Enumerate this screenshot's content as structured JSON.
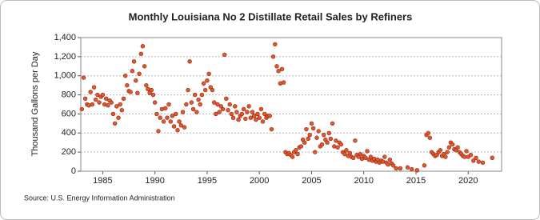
{
  "chart_data": {
    "type": "scatter",
    "title": "Monthly Louisiana No 2 Distillate Retail Sales by Refiners",
    "y_label": "Thousand Gallons per Day",
    "source": "Source: U.S. Energy Information Administration",
    "color": "#e4572e",
    "grid": true,
    "xlim": [
      1982.9,
      2023.2
    ],
    "ylim": [
      0,
      1400
    ],
    "xticks": [
      1985,
      1990,
      1995,
      2000,
      2005,
      2010,
      2015,
      2020
    ],
    "yticks": [
      0,
      200,
      400,
      600,
      800,
      {
        "value": 1000,
        "label": "1,000"
      },
      {
        "value": 1200,
        "label": "1,200"
      },
      {
        "value": 1400,
        "label": "1,400"
      }
    ],
    "x": [
      1983.0,
      1983.17,
      1983.33,
      1983.5,
      1983.67,
      1983.83,
      1984.0,
      1984.17,
      1984.33,
      1984.5,
      1984.67,
      1984.83,
      1985.0,
      1985.17,
      1985.33,
      1985.5,
      1985.67,
      1985.83,
      1986.0,
      1986.17,
      1986.33,
      1986.5,
      1986.67,
      1986.83,
      1987.0,
      1987.17,
      1987.33,
      1987.5,
      1987.67,
      1987.83,
      1988.0,
      1988.17,
      1988.33,
      1988.5,
      1988.67,
      1988.83,
      1989.0,
      1989.17,
      1989.33,
      1989.5,
      1989.67,
      1989.83,
      1990.0,
      1990.17,
      1990.33,
      1990.5,
      1990.67,
      1990.83,
      1991.0,
      1991.17,
      1991.33,
      1991.5,
      1991.67,
      1991.83,
      1992.0,
      1992.17,
      1992.33,
      1992.5,
      1992.67,
      1992.83,
      1993.0,
      1993.17,
      1993.33,
      1993.5,
      1993.67,
      1993.83,
      1994.0,
      1994.17,
      1994.33,
      1994.5,
      1994.67,
      1994.83,
      1995.0,
      1995.17,
      1995.33,
      1995.5,
      1995.67,
      1995.83,
      1996.0,
      1996.17,
      1996.33,
      1996.5,
      1996.67,
      1996.83,
      1997.0,
      1997.17,
      1997.33,
      1997.5,
      1997.67,
      1997.83,
      1998.0,
      1998.17,
      1998.33,
      1998.5,
      1998.67,
      1998.83,
      1999.0,
      1999.17,
      1999.33,
      1999.5,
      1999.67,
      1999.83,
      2000.0,
      2000.17,
      2000.33,
      2000.5,
      2000.67,
      2000.83,
      2001.0,
      2001.17,
      2001.33,
      2001.5,
      2001.67,
      2001.83,
      2002.0,
      2002.17,
      2002.33,
      2002.5,
      2002.67,
      2002.83,
      2003.0,
      2003.17,
      2003.33,
      2003.5,
      2003.67,
      2003.83,
      2004.0,
      2004.17,
      2004.33,
      2004.5,
      2004.67,
      2004.83,
      2005.0,
      2005.17,
      2005.33,
      2005.5,
      2005.67,
      2005.83,
      2006.0,
      2006.17,
      2006.33,
      2006.5,
      2006.67,
      2006.83,
      2007.0,
      2007.17,
      2007.33,
      2007.5,
      2007.67,
      2007.83,
      2008.0,
      2008.17,
      2008.33,
      2008.5,
      2008.67,
      2008.83,
      2009.0,
      2009.17,
      2009.33,
      2009.5,
      2009.67,
      2009.83,
      2010.0,
      2010.17,
      2010.33,
      2010.5,
      2010.67,
      2010.83,
      2011.0,
      2011.17,
      2011.33,
      2011.5,
      2011.67,
      2011.83,
      2012.0,
      2012.17,
      2012.33,
      2012.5,
      2012.67,
      2012.83,
      2013.1,
      2013.5,
      2014.2,
      2014.6,
      2015.1,
      2015.8,
      2016.0,
      2016.17,
      2016.33,
      2016.5,
      2016.67,
      2016.83,
      2017.0,
      2017.17,
      2017.33,
      2017.5,
      2017.67,
      2017.83,
      2018.0,
      2018.17,
      2018.33,
      2018.5,
      2018.67,
      2018.83,
      2019.0,
      2019.17,
      2019.33,
      2019.5,
      2019.67,
      2019.83,
      2020.0,
      2020.25,
      2020.5,
      2020.75,
      2021.0,
      2021.4,
      2022.3
    ],
    "values": [
      650,
      980,
      760,
      700,
      690,
      830,
      700,
      880,
      750,
      800,
      720,
      780,
      800,
      700,
      760,
      690,
      740,
      720,
      600,
      500,
      680,
      560,
      700,
      640,
      760,
      1000,
      900,
      840,
      830,
      1050,
      1150,
      950,
      820,
      1020,
      1230,
      1310,
      1100,
      900,
      860,
      820,
      850,
      800,
      720,
      600,
      420,
      560,
      650,
      520,
      660,
      560,
      700,
      520,
      580,
      470,
      600,
      430,
      520,
      480,
      620,
      460,
      700,
      850,
      1150,
      720,
      650,
      800,
      620,
      750,
      700,
      800,
      920,
      850,
      950,
      1020,
      880,
      850,
      720,
      600,
      700,
      620,
      680,
      650,
      1220,
      760,
      640,
      700,
      600,
      560,
      680,
      620,
      540,
      580,
      600,
      650,
      550,
      620,
      680,
      560,
      620,
      580,
      540,
      600,
      560,
      650,
      520,
      600,
      560,
      580,
      580,
      440,
      1200,
      1330,
      1100,
      1050,
      920,
      1070,
      930,
      200,
      180,
      190,
      170,
      150,
      200,
      220,
      180,
      250,
      260,
      330,
      300,
      440,
      340,
      380,
      500,
      450,
      200,
      350,
      420,
      260,
      280,
      380,
      330,
      300,
      400,
      340,
      500,
      260,
      320,
      250,
      300,
      280,
      200,
      180,
      220,
      160,
      190,
      150,
      140,
      320,
      170,
      150,
      180,
      130,
      160,
      140,
      210,
      120,
      150,
      110,
      130,
      100,
      120,
      90,
      110,
      100,
      150,
      90,
      70,
      120,
      80,
      60,
      30,
      30,
      40,
      20,
      10,
      60,
      380,
      400,
      350,
      200,
      180,
      160,
      170,
      200,
      220,
      160,
      180,
      150,
      200,
      250,
      300,
      280,
      230,
      220,
      250,
      200,
      180,
      160,
      150,
      210,
      150,
      170,
      110,
      140,
      100,
      90,
      140
    ]
  }
}
